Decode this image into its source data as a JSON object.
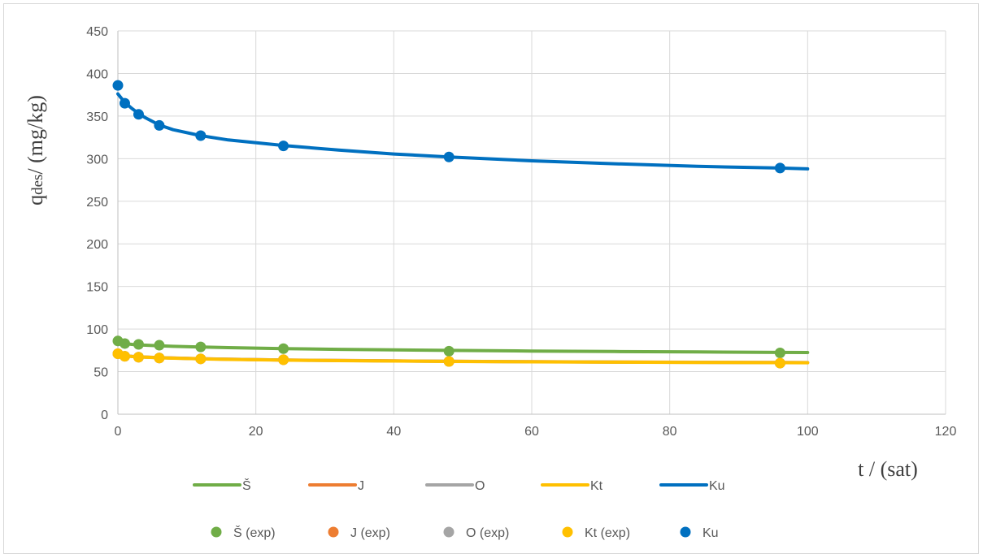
{
  "chart_data": {
    "type": "line",
    "xlabel": "t / (sat)",
    "ylabel_main": "q",
    "ylabel_sub": "des",
    "ylabel_rest": "/ (mg/kg)",
    "xlim": [
      0,
      120
    ],
    "ylim": [
      0,
      450
    ],
    "xticks": [
      0,
      20,
      40,
      60,
      80,
      100,
      120
    ],
    "yticks": [
      0,
      50,
      100,
      150,
      200,
      250,
      300,
      350,
      400,
      450
    ],
    "grid": true,
    "legend_position": "bottom",
    "colors": {
      "green": "#70ad47",
      "orange": "#ed7d31",
      "gray": "#a5a5a5",
      "yellow": "#ffc000",
      "blue": "#0070c0",
      "grid": "#d9d9d9",
      "axis": "#bfbfbf"
    },
    "x": [
      0,
      1,
      3,
      6,
      12,
      24,
      48,
      96
    ],
    "curve_x": [
      0,
      0.5,
      1,
      2,
      3,
      4,
      6,
      8,
      12,
      16,
      24,
      32,
      40,
      48,
      60,
      72,
      84,
      96,
      100
    ],
    "line_series": [
      {
        "name": "Š",
        "color_key": "green",
        "values": [
          85,
          83.8,
          83,
          82,
          81.4,
          81,
          80.3,
          79.7,
          78.9,
          78.2,
          77,
          76.2,
          75.5,
          74.9,
          74.2,
          73.6,
          73.1,
          72.6,
          72.5
        ]
      },
      {
        "name": "J",
        "color_key": "orange",
        "values": [
          71,
          69.5,
          68.8,
          68,
          67.5,
          67.1,
          66.5,
          66,
          65.2,
          64.6,
          63.7,
          63.1,
          62.6,
          62.2,
          61.7,
          61.3,
          61,
          60.7,
          60.6
        ]
      },
      {
        "name": "O",
        "color_key": "gray",
        "values": [
          71,
          69.4,
          68.7,
          67.9,
          67.4,
          67,
          66.4,
          65.9,
          65.1,
          64.5,
          63.6,
          63,
          62.5,
          62.1,
          61.6,
          61.2,
          60.9,
          60.6,
          60.5
        ]
      },
      {
        "name": "Kt",
        "color_key": "yellow",
        "values": [
          71,
          69.3,
          68.6,
          67.8,
          67.3,
          66.9,
          66.3,
          65.8,
          65,
          64.4,
          63.5,
          62.9,
          62.4,
          62,
          61.5,
          61.1,
          60.8,
          60.5,
          60.4
        ]
      },
      {
        "name": "Ku",
        "color_key": "blue",
        "values": [
          376,
          371,
          366,
          359,
          353,
          348,
          339.5,
          334,
          327,
          322,
          315.5,
          310,
          305.5,
          302,
          297.5,
          294,
          291,
          289,
          288
        ]
      }
    ],
    "point_series": [
      {
        "name": "Š (exp)",
        "color_key": "green",
        "values": [
          86,
          83,
          82,
          81,
          79,
          77,
          74,
          72
        ]
      },
      {
        "name": "J (exp)",
        "color_key": "orange",
        "values": [
          71,
          68,
          67,
          66,
          65,
          64,
          62,
          60
        ]
      },
      {
        "name": "O (exp)",
        "color_key": "gray",
        "values": [
          71,
          68,
          67,
          66,
          65,
          64,
          62,
          60
        ]
      },
      {
        "name": "Kt (exp)",
        "color_key": "yellow",
        "values": [
          71,
          68,
          67,
          66,
          65,
          64,
          62,
          60
        ]
      },
      {
        "name": "Ku",
        "color_key": "blue",
        "values": [
          386,
          365,
          352,
          339,
          327,
          315,
          302,
          289
        ]
      }
    ]
  }
}
